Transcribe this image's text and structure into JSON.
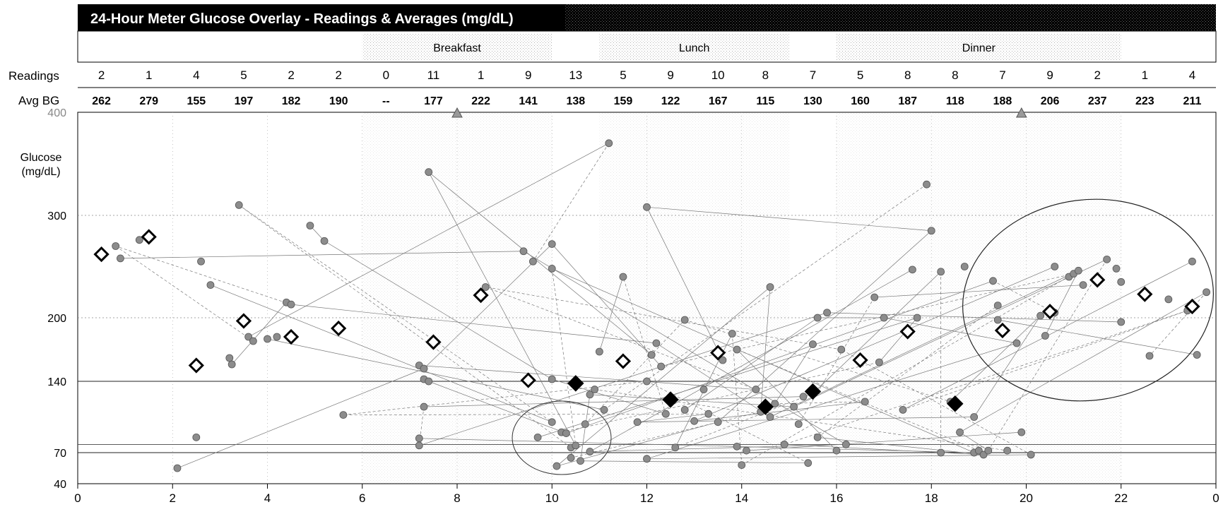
{
  "chart_data": {
    "type": "scatter",
    "title": "24-Hour Meter Glucose Overlay - Readings & Averages (mg/dL)",
    "meals": [
      {
        "label": "Breakfast",
        "start": 6,
        "end": 10
      },
      {
        "label": "Lunch",
        "start": 11,
        "end": 15
      },
      {
        "label": "Dinner",
        "start": 16,
        "end": 22
      }
    ],
    "row_labels": {
      "readings": "Readings",
      "avg": "Avg BG"
    },
    "hour_bins": [
      0.5,
      1.5,
      2.5,
      3.5,
      4.5,
      5.5,
      6.5,
      7.5,
      8.5,
      9.5,
      10.5,
      11.5,
      12.5,
      13.5,
      14.5,
      15.5,
      16.5,
      17.5,
      18.5,
      19.5,
      20.5,
      21.5,
      22.5,
      23.5
    ],
    "readings_counts": [
      "2",
      "1",
      "4",
      "5",
      "2",
      "2",
      "0",
      "11",
      "1",
      "9",
      "13",
      "5",
      "9",
      "10",
      "8",
      "7",
      "5",
      "8",
      "8",
      "7",
      "9",
      "2",
      "1",
      "4"
    ],
    "avg_bg": [
      "262",
      "279",
      "155",
      "197",
      "182",
      "190",
      "--",
      "177",
      "222",
      "141",
      "138",
      "159",
      "122",
      "167",
      "115",
      "130",
      "160",
      "187",
      "118",
      "188",
      "206",
      "237",
      "223",
      "211"
    ],
    "ylabel": "Glucose\n(mg/dL)",
    "xlim": [
      0,
      24
    ],
    "x_ticks": [
      "0",
      "2",
      "4",
      "6",
      "8",
      "10",
      "12",
      "14",
      "16",
      "18",
      "20",
      "22",
      "0"
    ],
    "y_ticks": [
      40,
      70,
      140,
      200,
      300,
      400
    ],
    "y_tick_labels": [
      "40",
      "70",
      "140",
      "200",
      "300",
      "400"
    ],
    "target_range": [
      70,
      140
    ],
    "markers": {
      "avg_open": [
        [
          0.5,
          262
        ],
        [
          1.5,
          279
        ],
        [
          2.5,
          155
        ],
        [
          3.5,
          197
        ],
        [
          4.5,
          182
        ],
        [
          5.5,
          190
        ],
        [
          7.5,
          177
        ],
        [
          8.5,
          222
        ],
        [
          9.5,
          141
        ],
        [
          11.5,
          159
        ],
        [
          13.5,
          167
        ],
        [
          16.5,
          160
        ],
        [
          17.5,
          187
        ],
        [
          19.5,
          188
        ],
        [
          20.5,
          206
        ],
        [
          21.5,
          237
        ],
        [
          22.5,
          223
        ],
        [
          23.5,
          211
        ]
      ],
      "avg_filled": [
        [
          10.5,
          138
        ],
        [
          12.5,
          122
        ],
        [
          14.5,
          115
        ],
        [
          15.5,
          130
        ],
        [
          18.5,
          118
        ]
      ],
      "above_range": [
        [
          8,
          400
        ],
        [
          19.9,
          400
        ]
      ]
    },
    "readings": [
      [
        0.8,
        270
      ],
      [
        0.9,
        258
      ],
      [
        1.3,
        276
      ],
      [
        2.1,
        55
      ],
      [
        2.5,
        85
      ],
      [
        2.6,
        255
      ],
      [
        2.8,
        232
      ],
      [
        3.2,
        162
      ],
      [
        3.25,
        156
      ],
      [
        3.4,
        310
      ],
      [
        3.6,
        182
      ],
      [
        3.7,
        178
      ],
      [
        4.0,
        180
      ],
      [
        4.2,
        182
      ],
      [
        4.4,
        215
      ],
      [
        4.5,
        213
      ],
      [
        4.9,
        290
      ],
      [
        5.2,
        275
      ],
      [
        5.6,
        107
      ],
      [
        7.2,
        84
      ],
      [
        7.2,
        77
      ],
      [
        7.2,
        155
      ],
      [
        7.3,
        142
      ],
      [
        7.3,
        152
      ],
      [
        7.3,
        115
      ],
      [
        7.4,
        140
      ],
      [
        7.4,
        342
      ],
      [
        8.6,
        230
      ],
      [
        9.4,
        265
      ],
      [
        9.6,
        255
      ],
      [
        9.7,
        85
      ],
      [
        10.0,
        100
      ],
      [
        10.0,
        272
      ],
      [
        10.0,
        248
      ],
      [
        10.0,
        142
      ],
      [
        10.1,
        57
      ],
      [
        10.2,
        90
      ],
      [
        10.3,
        89
      ],
      [
        10.4,
        65
      ],
      [
        10.4,
        75
      ],
      [
        10.5,
        77
      ],
      [
        10.6,
        62
      ],
      [
        10.7,
        98
      ],
      [
        10.8,
        127
      ],
      [
        10.8,
        71
      ],
      [
        10.9,
        132
      ],
      [
        11.0,
        168
      ],
      [
        11.1,
        112
      ],
      [
        11.2,
        370
      ],
      [
        11.5,
        240
      ],
      [
        11.8,
        100
      ],
      [
        12.0,
        140
      ],
      [
        12.0,
        308
      ],
      [
        12.0,
        64
      ],
      [
        12.1,
        165
      ],
      [
        12.2,
        176
      ],
      [
        12.3,
        154
      ],
      [
        12.4,
        108
      ],
      [
        12.6,
        75
      ],
      [
        12.8,
        112
      ],
      [
        12.8,
        198
      ],
      [
        13.0,
        101
      ],
      [
        13.2,
        132
      ],
      [
        13.3,
        108
      ],
      [
        13.5,
        100
      ],
      [
        13.6,
        160
      ],
      [
        13.8,
        185
      ],
      [
        13.9,
        170
      ],
      [
        13.9,
        76
      ],
      [
        14.0,
        58
      ],
      [
        14.1,
        72
      ],
      [
        14.3,
        132
      ],
      [
        14.4,
        110
      ],
      [
        14.6,
        105
      ],
      [
        14.6,
        230
      ],
      [
        14.7,
        118
      ],
      [
        14.9,
        78
      ],
      [
        15.1,
        115
      ],
      [
        15.2,
        98
      ],
      [
        15.3,
        125
      ],
      [
        15.4,
        60
      ],
      [
        15.5,
        128
      ],
      [
        15.5,
        175
      ],
      [
        15.6,
        200
      ],
      [
        15.6,
        85
      ],
      [
        15.8,
        205
      ],
      [
        16.0,
        72
      ],
      [
        16.1,
        170
      ],
      [
        16.2,
        78
      ],
      [
        16.6,
        120
      ],
      [
        16.8,
        220
      ],
      [
        16.9,
        158
      ],
      [
        17.0,
        200
      ],
      [
        17.4,
        112
      ],
      [
        17.6,
        247
      ],
      [
        17.7,
        200
      ],
      [
        17.9,
        330
      ],
      [
        18.0,
        285
      ],
      [
        18.2,
        245
      ],
      [
        18.2,
        70
      ],
      [
        18.4,
        120
      ],
      [
        18.6,
        90
      ],
      [
        18.7,
        250
      ],
      [
        18.9,
        70
      ],
      [
        18.9,
        105
      ],
      [
        19.0,
        72
      ],
      [
        19.1,
        68
      ],
      [
        19.2,
        72
      ],
      [
        19.3,
        236
      ],
      [
        19.4,
        212
      ],
      [
        19.4,
        198
      ],
      [
        19.6,
        72
      ],
      [
        19.8,
        176
      ],
      [
        19.9,
        90
      ],
      [
        20.1,
        68
      ],
      [
        20.3,
        202
      ],
      [
        20.4,
        183
      ],
      [
        20.6,
        250
      ],
      [
        20.6,
        205
      ],
      [
        20.9,
        240
      ],
      [
        21.0,
        243
      ],
      [
        21.1,
        246
      ],
      [
        21.2,
        232
      ],
      [
        21.7,
        257
      ],
      [
        21.9,
        248
      ],
      [
        22.0,
        235
      ],
      [
        22.0,
        196
      ],
      [
        22.6,
        164
      ],
      [
        23.0,
        218
      ],
      [
        23.4,
        207
      ],
      [
        23.5,
        255
      ],
      [
        23.6,
        165
      ],
      [
        23.8,
        225
      ]
    ]
  }
}
